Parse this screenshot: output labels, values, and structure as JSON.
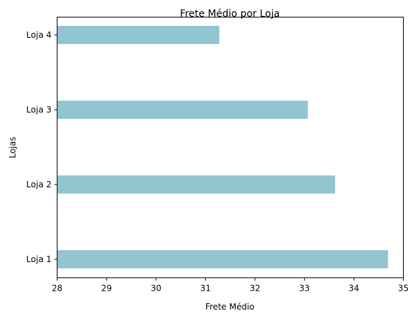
{
  "chart_data": {
    "type": "bar",
    "orientation": "horizontal",
    "title": "Frete Médio por Loja",
    "xlabel": "Frete Médio",
    "ylabel": "Lojas",
    "categories": [
      "Loja 1",
      "Loja 2",
      "Loja 3",
      "Loja 4"
    ],
    "values": [
      34.69,
      33.62,
      33.07,
      31.28
    ],
    "xlim": [
      28,
      35
    ],
    "xticks": [
      28,
      29,
      30,
      31,
      32,
      33,
      34,
      35
    ],
    "bar_color": "#92c5cf",
    "grid": false
  }
}
